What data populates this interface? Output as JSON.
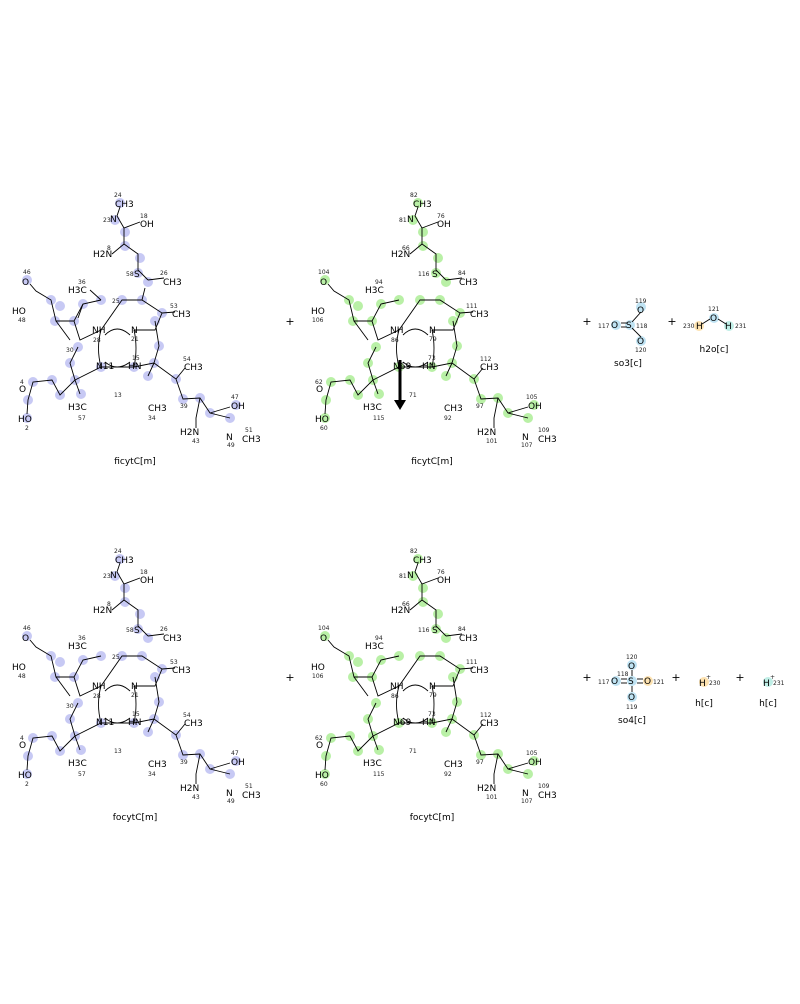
{
  "reaction": {
    "arrow": "down",
    "reactants": [
      {
        "name": "ficytC[m]",
        "highlight": "#c7c9f4",
        "plus_after": "+"
      },
      {
        "name": "ficytC[m]",
        "highlight": "#b9f0a6",
        "plus_after": "+"
      },
      {
        "name": "so3[c]",
        "highlight": "#bfe3f3",
        "plus_after": "+"
      },
      {
        "name": "h2o[c]",
        "highlight": "#bfe3f3"
      }
    ],
    "products": [
      {
        "name": "focytC[m]",
        "highlight": "#c7c9f4",
        "plus_after": "+"
      },
      {
        "name": "focytC[m]",
        "highlight": "#b9f0a6",
        "plus_after": "+"
      },
      {
        "name": "so4[c]",
        "highlight": "#bfe3f3",
        "plus_after": "+"
      },
      {
        "name": "h[c]",
        "highlight": "#fde2b0",
        "plus_after": "+"
      },
      {
        "name": "h[c]",
        "highlight": "#bfeee6"
      }
    ]
  },
  "molecule_labels": {
    "mol_a": [
      "24",
      "CH3",
      "23",
      "N",
      "18",
      "OH",
      "8",
      "H2N",
      "58",
      "S",
      "26",
      "CH3",
      "46",
      "O",
      "36",
      "H3C",
      "25",
      "53",
      "CH3",
      "HO",
      "48",
      "NH",
      "28",
      "N",
      "21",
      "30",
      "N11",
      "15",
      "HN",
      "4",
      "O",
      "54",
      "CH3",
      "47",
      "OH",
      "HO",
      "2",
      "H3C",
      "57",
      "13",
      "CH3",
      "34",
      "H2N",
      "43",
      "39",
      "N",
      "49",
      "51",
      "CH3"
    ],
    "mol_b": [
      "82",
      "CH3",
      "81",
      "N",
      "76",
      "OH",
      "66",
      "H2N",
      "116",
      "S",
      "84",
      "CH3",
      "104",
      "O",
      "94",
      "H3C",
      "111",
      "CH3",
      "HO",
      "106",
      "NH",
      "86",
      "N",
      "79",
      "62",
      "O",
      "69",
      "HN",
      "112",
      "CH3",
      "105",
      "OH",
      "HO",
      "60",
      "H3C",
      "115",
      "71",
      "CH3",
      "92",
      "97",
      "S",
      "H2N",
      "101",
      "N",
      "107",
      "109",
      "CH3"
    ],
    "so3": [
      "119",
      "O",
      "117",
      "O",
      "S",
      "118",
      "O",
      "120"
    ],
    "h2o": [
      "121",
      "O",
      "230",
      "H",
      "H",
      "231"
    ],
    "so4": [
      "120",
      "O",
      "117",
      "O",
      "S",
      "118",
      "O",
      "121",
      "O",
      "119"
    ],
    "h1": [
      "H",
      "+",
      "230"
    ],
    "h2": [
      "H",
      "+",
      "231"
    ]
  }
}
